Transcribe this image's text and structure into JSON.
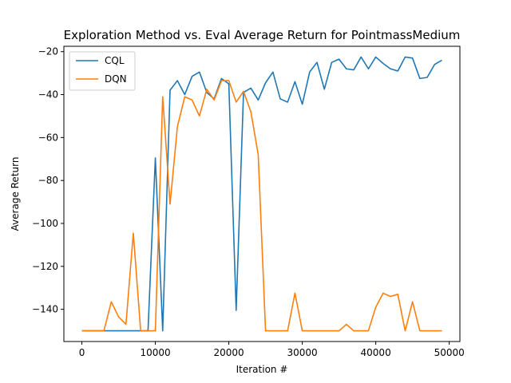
{
  "chart_data": {
    "type": "line",
    "title": "Exploration Method vs. Eval Average Return for PointmassMedium",
    "xlabel": "Iteration #",
    "ylabel": "Average Return",
    "xlim": [
      -2450,
      51450
    ],
    "ylim": [
      -155,
      -17.5
    ],
    "xticks": [
      0,
      10000,
      20000,
      30000,
      40000,
      50000
    ],
    "yticks": [
      -140,
      -120,
      -100,
      -80,
      -60,
      -40,
      -20
    ],
    "grid": false,
    "legend_position": "top-left",
    "x": [
      0,
      1000,
      2000,
      3000,
      4000,
      5000,
      6000,
      7000,
      8000,
      9000,
      10000,
      11000,
      12000,
      13000,
      14000,
      15000,
      16000,
      17000,
      18000,
      19000,
      20000,
      21000,
      22000,
      23000,
      24000,
      25000,
      26000,
      27000,
      28000,
      29000,
      30000,
      31000,
      32000,
      33000,
      34000,
      35000,
      36000,
      37000,
      38000,
      39000,
      40000,
      41000,
      42000,
      43000,
      44000,
      45000,
      46000,
      47000,
      48000,
      49000
    ],
    "series": [
      {
        "name": "CQL",
        "color": "#1f77b4",
        "values": [
          -150,
          -150,
          -150,
          -150,
          -150,
          -150,
          -150,
          -150,
          -150,
          -150,
          -69.5,
          -150,
          -38,
          -33.5,
          -40,
          -31.5,
          -29.5,
          -39,
          -42,
          -32.5,
          -35,
          -140.5,
          -39,
          -37,
          -42.5,
          -34.5,
          -29.5,
          -42,
          -43.5,
          -34,
          -44.5,
          -29.5,
          -25,
          -37.5,
          -25,
          -23.5,
          -28,
          -28.5,
          -22.5,
          -28,
          -22.5,
          -25.5,
          -28,
          -29,
          -22.5,
          -23,
          -32.5,
          -32,
          -26,
          -24
        ]
      },
      {
        "name": "DQN",
        "color": "#ff7f0e",
        "values": [
          -150,
          -150,
          -150,
          -150,
          -136.5,
          -143.5,
          -147,
          -104.5,
          -150,
          -150,
          -150,
          -41,
          -91,
          -55,
          -41,
          -42.5,
          -50,
          -37.5,
          -42.5,
          -33.5,
          -33.5,
          -43.5,
          -38.5,
          -48,
          -68,
          -150,
          -150,
          -150,
          -150,
          -132.5,
          -150,
          -150,
          -150,
          -150,
          -150,
          -150,
          -147,
          -150,
          -150,
          -150,
          -139,
          -132.5,
          -134,
          -133,
          -150,
          -136.5,
          -150,
          -150,
          -150,
          -150
        ]
      }
    ]
  }
}
